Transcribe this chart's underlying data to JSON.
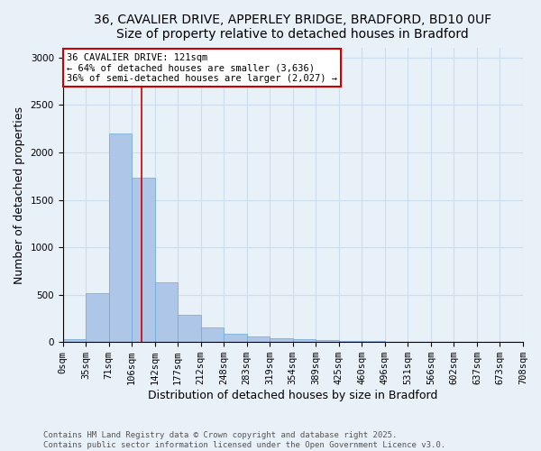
{
  "title_line1": "36, CAVALIER DRIVE, APPERLEY BRIDGE, BRADFORD, BD10 0UF",
  "title_line2": "Size of property relative to detached houses in Bradford",
  "xlabel": "Distribution of detached houses by size in Bradford",
  "ylabel": "Number of detached properties",
  "bar_values": [
    30,
    520,
    2200,
    1730,
    630,
    290,
    150,
    85,
    55,
    40,
    30,
    20,
    15,
    10,
    5,
    3,
    2,
    1,
    1,
    1
  ],
  "bin_labels": [
    "0sqm",
    "35sqm",
    "71sqm",
    "106sqm",
    "142sqm",
    "177sqm",
    "212sqm",
    "248sqm",
    "283sqm",
    "319sqm",
    "354sqm",
    "389sqm",
    "425sqm",
    "460sqm",
    "496sqm",
    "531sqm",
    "566sqm",
    "602sqm",
    "637sqm",
    "673sqm",
    "708sqm"
  ],
  "bar_color": "#aec6e8",
  "bar_edge_color": "#6aaad4",
  "annotation_text": "36 CAVALIER DRIVE: 121sqm\n← 64% of detached houses are smaller (3,636)\n36% of semi-detached houses are larger (2,027) →",
  "annotation_box_color": "#ffffff",
  "annotation_box_edge_color": "#cc0000",
  "line_color": "#cc0000",
  "ylim": [
    0,
    3100
  ],
  "yticks": [
    0,
    500,
    1000,
    1500,
    2000,
    2500,
    3000
  ],
  "grid_color": "#ccddee",
  "background_color": "#e8f0f8",
  "footer_line1": "Contains HM Land Registry data © Crown copyright and database right 2025.",
  "footer_line2": "Contains public sector information licensed under the Open Government Licence v3.0.",
  "title_fontsize": 10,
  "axis_label_fontsize": 9,
  "tick_fontsize": 7.5,
  "annotation_fontsize": 7.5,
  "footer_fontsize": 6.5
}
